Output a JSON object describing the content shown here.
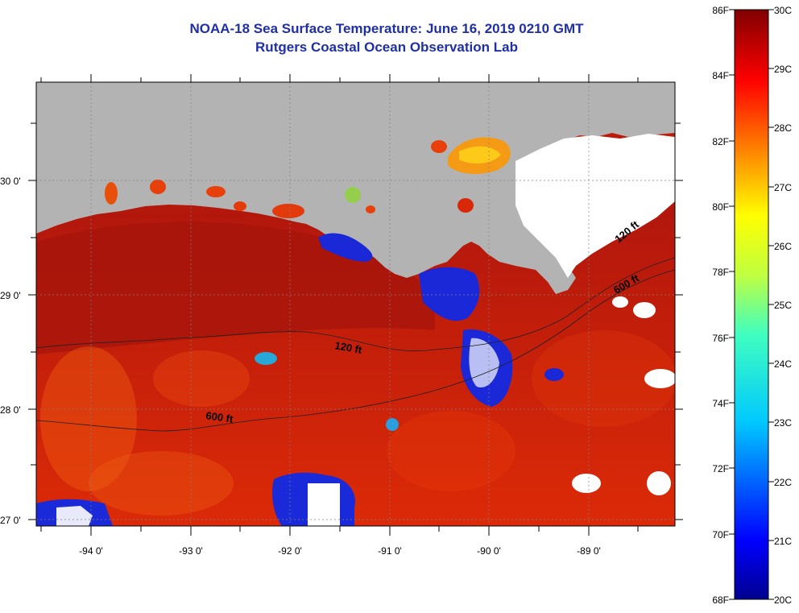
{
  "header": {
    "title": "NOAA-18 Sea Surface Temperature:  June 16, 2019 0210 GMT",
    "subtitle": "Rutgers Coastal Ocean Observation Lab"
  },
  "map": {
    "lon_labels": [
      "-94 0'",
      "-93 0'",
      "-92 0'",
      "-91 0'",
      "-90 0'",
      "-89 0'"
    ],
    "lat_labels": [
      "30 0'",
      "29 0'",
      "28 0'",
      "27 0'"
    ],
    "contours": {
      "shelf_label": "120 ft",
      "slope_label": "600 ft"
    },
    "colors": {
      "land": "#b3b3b3",
      "cloud": "#ffffff",
      "warm_water": "#d81e05",
      "hot_water": "#8e0a0a"
    }
  },
  "colorbar": {
    "fahrenheit_labels": [
      "86F",
      "84F",
      "82F",
      "80F",
      "78F",
      "76F",
      "74F",
      "72F",
      "70F",
      "68F"
    ],
    "celsius_labels": [
      "30C",
      "29C",
      "28C",
      "27C",
      "26C",
      "25C",
      "24C",
      "23C",
      "22C",
      "21C",
      "20C"
    ]
  }
}
